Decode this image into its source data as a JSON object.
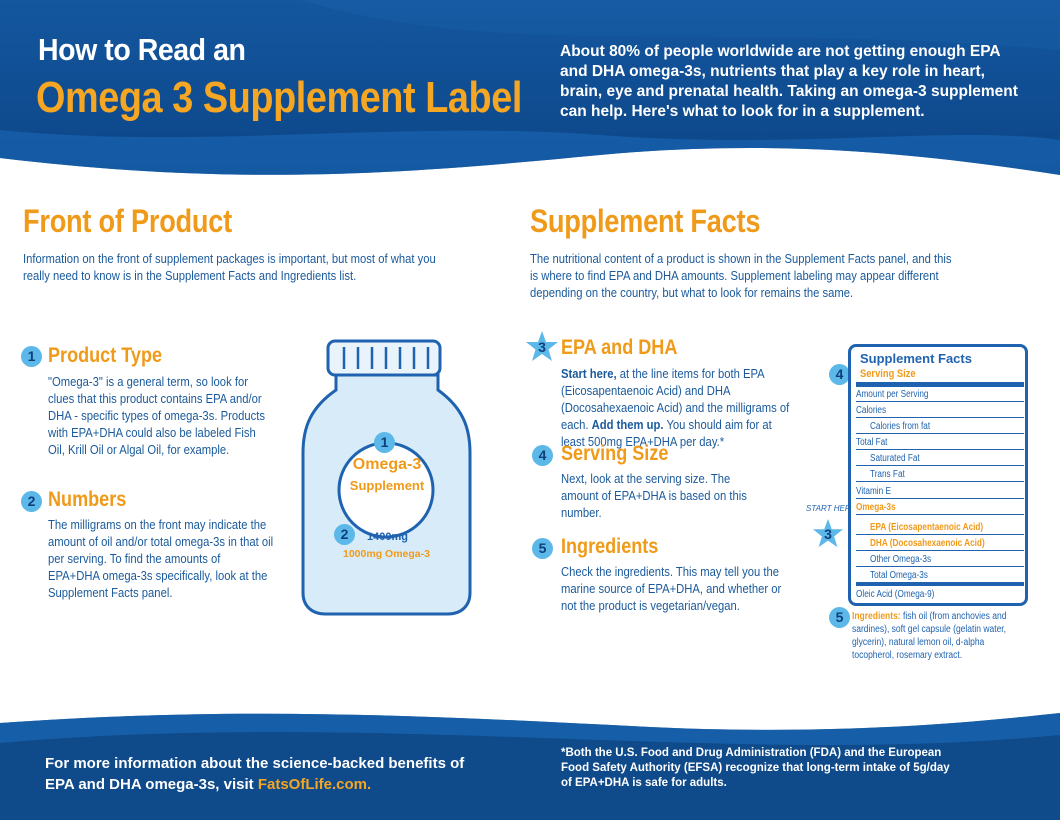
{
  "header": {
    "title_line1": "How to Read an",
    "title_line2": "Omega 3 Supplement Label",
    "intro": "About 80% of people worldwide are not getting enough EPA and DHA omega-3s, nutrients that play a key role in heart, brain, eye and prenatal health. Taking an omega-3 supplement can help. Here's what to look for in a supplement."
  },
  "front": {
    "title": "Front of Product",
    "description": "Information on the front of supplement packages is important, but most of what you really need to know is in the Supplement Facts and Ingredients list.",
    "items": [
      {
        "number": "1",
        "title": "Product Type",
        "text": "\"Omega-3\" is a general term, so look for clues that this product contains EPA and/or DHA - specific types of omega-3s. Products with EPA+DHA could also be labeled Fish Oil, Krill Oil or Algal Oil, for example."
      },
      {
        "number": "2",
        "title": "Numbers",
        "text": "The milligrams on the front may indicate the amount of oil and/or total omega-3s in that oil per serving. To find the amounts of EPA+DHA omega-3s specifically, look at the Supplement Facts panel."
      }
    ],
    "bottle": {
      "marker1": "1",
      "label_line1": "Omega-3",
      "label_line2": "Supplement",
      "marker2": "2",
      "mg_total": "1400mg",
      "mg_omega": "1000mg Omega-3"
    }
  },
  "facts": {
    "title": "Supplement Facts",
    "description": "The nutritional content of a product is shown in the Supplement Facts panel, and this is where to find EPA and DHA amounts. Supplement labeling may appear different depending on the country, but what to look for remains the same.",
    "items": [
      {
        "number": "3",
        "title": "EPA and DHA",
        "lead": "Start here,",
        "text_a": " at the line items for both EPA (Eicosapentaenoic Acid) and DHA (Docosahexaenoic Acid) and the milligrams of each. ",
        "bold": "Add them up.",
        "text_b": " You should aim for at least 500mg EPA+DHA per day.*"
      },
      {
        "number": "4",
        "title": "Serving Size",
        "text": "Next, look at the serving size. The amount of EPA+DHA is based on this number."
      },
      {
        "number": "5",
        "title": "Ingredients",
        "text": "Check the ingredients. This may tell you the marine source of EPA+DHA, and whether or not the product is vegetarian/vegan."
      }
    ],
    "panel": {
      "title": "Supplement Facts",
      "serving": "Serving Size",
      "amount": "Amount per Serving",
      "calories": "Calories",
      "calories_fat": "Calories from fat",
      "total_fat": "Total Fat",
      "saturated": "Saturated Fat",
      "trans": "Trans Fat",
      "vitamin": "Vitamin E",
      "omega3s": "Omega-3s",
      "epa": "EPA (Eicosapentaenoic Acid)",
      "dha": "DHA (Docosahexaenoic Acid)",
      "other": "Other Omega-3s",
      "total": "Total Omega-3s",
      "oleic": "Oleic Acid (Omega-9)",
      "marker4": "4",
      "marker3": "3",
      "marker5": "5",
      "start_here": "START HERE"
    },
    "ingredients_label": "Ingredients:",
    "ingredients_text": " fish oil (from anchovies and sardines), soft gel capsule (gelatin water, glycerin), natural lemon oil, d-alpha tocopherol, rosemary extract."
  },
  "footer": {
    "left_text": "For more information about the science-backed benefits of EPA and DHA omega-3s, visit ",
    "link": "FatsOfLife.com.",
    "right_text": "*Both the U.S. Food and Drug Administration (FDA) and the European Food Safety Authority (EFSA) recognize that long-term intake of 5g/day of EPA+DHA is safe for adults."
  },
  "colors": {
    "blue_dark": "#0f4a8a",
    "blue_mid": "#1f63b0",
    "orange": "#f09a1a",
    "light_blue": "#5bb8e8"
  }
}
